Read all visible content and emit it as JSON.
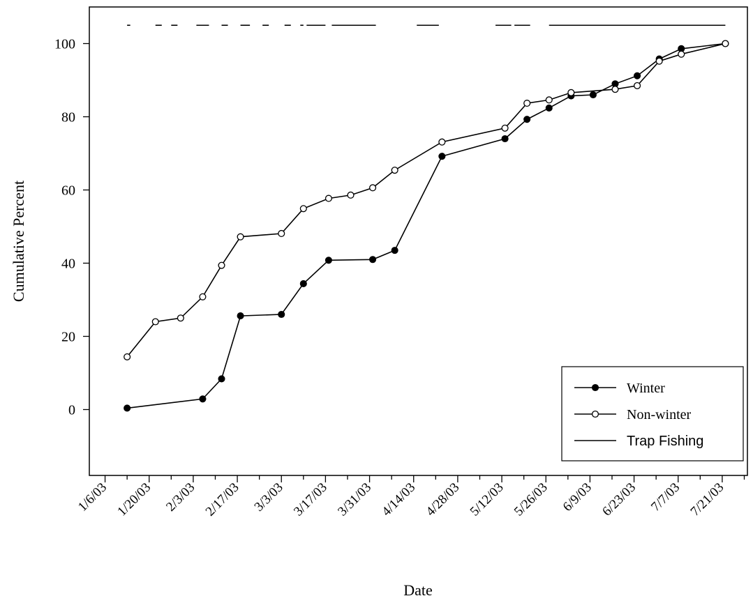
{
  "chart_data": {
    "type": "line",
    "xlabel": "Date",
    "ylabel": "Cumulative Percent",
    "x_tick_labels": [
      "1/6/03",
      "1/20/03",
      "2/3/03",
      "2/17/03",
      "3/3/03",
      "3/17/03",
      "3/31/03",
      "4/14/03",
      "4/28/03",
      "5/12/03",
      "5/26/03",
      "6/9/03",
      "6/23/03",
      "7/7/03",
      "7/21/03"
    ],
    "y_ticks": [
      0,
      20,
      40,
      60,
      80,
      100
    ],
    "xlim": [
      "2003-01-01",
      "2003-07-29"
    ],
    "ylim": [
      -18,
      110
    ],
    "grid": false,
    "legend_position": "bottom-right",
    "series": [
      {
        "name": "Winter",
        "marker": "filled-circle",
        "points": [
          [
            "2003-01-13",
            0.4
          ],
          [
            "2003-02-06",
            2.9
          ],
          [
            "2003-02-12",
            8.4
          ],
          [
            "2003-02-18",
            25.6
          ],
          [
            "2003-03-03",
            26.0
          ],
          [
            "2003-03-10",
            34.4
          ],
          [
            "2003-03-18",
            40.8
          ],
          [
            "2003-04-01",
            41.0
          ],
          [
            "2003-04-08",
            43.5
          ],
          [
            "2003-04-23",
            69.2
          ],
          [
            "2003-05-13",
            74.0
          ],
          [
            "2003-05-20",
            79.3
          ],
          [
            "2003-05-27",
            82.4
          ],
          [
            "2003-06-03",
            85.7
          ],
          [
            "2003-06-10",
            86.0
          ],
          [
            "2003-06-17",
            89.0
          ],
          [
            "2003-06-24",
            91.2
          ],
          [
            "2003-07-01",
            95.8
          ],
          [
            "2003-07-08",
            98.6
          ],
          [
            "2003-07-22",
            100.0
          ]
        ]
      },
      {
        "name": "Non-winter",
        "marker": "open-circle",
        "points": [
          [
            "2003-01-13",
            14.4
          ],
          [
            "2003-01-22",
            24.0
          ],
          [
            "2003-01-30",
            25.0
          ],
          [
            "2003-02-06",
            30.8
          ],
          [
            "2003-02-12",
            39.4
          ],
          [
            "2003-02-18",
            47.2
          ],
          [
            "2003-03-03",
            48.1
          ],
          [
            "2003-03-10",
            54.9
          ],
          [
            "2003-03-18",
            57.7
          ],
          [
            "2003-03-25",
            58.6
          ],
          [
            "2003-04-01",
            60.6
          ],
          [
            "2003-04-08",
            65.4
          ],
          [
            "2003-04-23",
            73.1
          ],
          [
            "2003-05-13",
            76.9
          ],
          [
            "2003-05-20",
            83.7
          ],
          [
            "2003-05-27",
            84.6
          ],
          [
            "2003-06-03",
            86.6
          ],
          [
            "2003-06-17",
            87.5
          ],
          [
            "2003-06-24",
            88.5
          ],
          [
            "2003-07-01",
            95.2
          ],
          [
            "2003-07-08",
            97.1
          ],
          [
            "2003-07-22",
            100.0
          ]
        ]
      },
      {
        "name": "Trap Fishing",
        "marker": "none",
        "value": 105,
        "periods": [
          [
            "2003-01-13",
            "2003-01-14"
          ],
          [
            "2003-01-22",
            "2003-01-24"
          ],
          [
            "2003-01-27",
            "2003-01-29"
          ],
          [
            "2003-02-04",
            "2003-02-08"
          ],
          [
            "2003-02-12",
            "2003-02-14"
          ],
          [
            "2003-02-18",
            "2003-02-21"
          ],
          [
            "2003-02-25",
            "2003-02-27"
          ],
          [
            "2003-03-04",
            "2003-03-06"
          ],
          [
            "2003-03-09",
            "2003-03-10"
          ],
          [
            "2003-03-11",
            "2003-03-17"
          ],
          [
            "2003-03-19",
            "2003-04-02"
          ],
          [
            "2003-04-15",
            "2003-04-22"
          ],
          [
            "2003-05-10",
            "2003-05-15"
          ],
          [
            "2003-05-16",
            "2003-05-21"
          ],
          [
            "2003-05-27",
            "2003-07-22"
          ]
        ]
      }
    ]
  }
}
